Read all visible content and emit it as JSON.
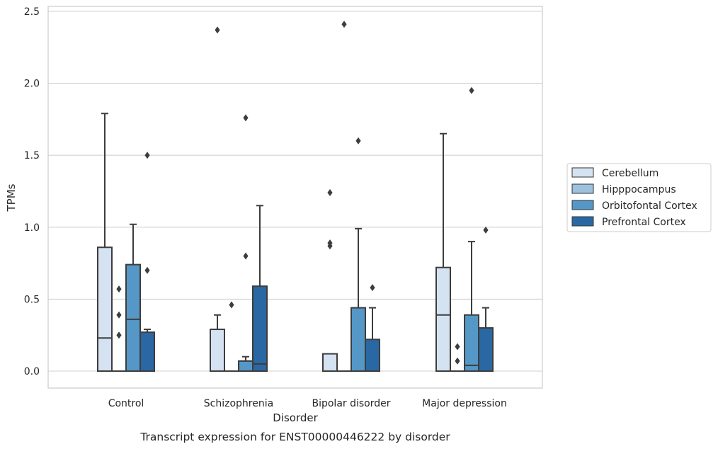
{
  "chart_data": {
    "type": "box",
    "title": "",
    "caption": "Transcript expression for ENST00000446222 by disorder",
    "xlabel": "Disorder",
    "ylabel": "TPMs",
    "ylim": [
      -0.12,
      2.55
    ],
    "yticks": [
      0.0,
      0.5,
      1.0,
      1.5,
      2.0,
      2.5
    ],
    "ytick_labels": [
      "0.0",
      "0.5",
      "1.0",
      "1.5",
      "2.0",
      "2.5"
    ],
    "grid": "horizontal",
    "legend_position": "right",
    "categories": [
      "Control",
      "Schizophrenia",
      "Bipolar disorder",
      "Major depression"
    ],
    "series": [
      {
        "name": "Cerebellum",
        "color": "#d4e2f1",
        "boxes": [
          {
            "q1": 0.0,
            "median": 0.23,
            "q3": 0.86,
            "whisker_low": 0.0,
            "whisker_high": 1.79,
            "outliers": []
          },
          {
            "q1": 0.0,
            "median": 0.0,
            "q3": 0.29,
            "whisker_low": 0.0,
            "whisker_high": 0.39,
            "outliers": [
              2.37
            ]
          },
          {
            "q1": 0.0,
            "median": 0.0,
            "q3": 0.12,
            "whisker_low": 0.0,
            "whisker_high": 0.12,
            "outliers": [
              0.87,
              0.89,
              1.24
            ]
          },
          {
            "q1": 0.0,
            "median": 0.39,
            "q3": 0.72,
            "whisker_low": 0.0,
            "whisker_high": 1.65,
            "outliers": []
          }
        ]
      },
      {
        "name": "Hipppocampus",
        "color": "#9ec2de",
        "boxes": [
          {
            "q1": 0.0,
            "median": 0.0,
            "q3": 0.0,
            "whisker_low": 0.0,
            "whisker_high": 0.0,
            "outliers": [
              0.25,
              0.39,
              0.57
            ]
          },
          {
            "q1": 0.0,
            "median": 0.0,
            "q3": 0.0,
            "whisker_low": 0.0,
            "whisker_high": 0.0,
            "outliers": [
              0.46
            ]
          },
          {
            "q1": 0.0,
            "median": 0.0,
            "q3": 0.0,
            "whisker_low": 0.0,
            "whisker_high": 0.0,
            "outliers": [
              2.41
            ]
          },
          {
            "q1": 0.0,
            "median": 0.0,
            "q3": 0.0,
            "whisker_low": 0.0,
            "whisker_high": 0.0,
            "outliers": [
              0.07,
              0.17
            ]
          }
        ]
      },
      {
        "name": "Orbitofontal Cortex",
        "color": "#5597c6",
        "boxes": [
          {
            "q1": 0.0,
            "median": 0.36,
            "q3": 0.74,
            "whisker_low": 0.0,
            "whisker_high": 1.02,
            "outliers": []
          },
          {
            "q1": 0.0,
            "median": 0.07,
            "q3": 0.07,
            "whisker_low": 0.0,
            "whisker_high": 0.1,
            "outliers": [
              0.8,
              1.76
            ]
          },
          {
            "q1": 0.0,
            "median": 0.0,
            "q3": 0.44,
            "whisker_low": 0.0,
            "whisker_high": 0.99,
            "outliers": [
              1.6
            ]
          },
          {
            "q1": 0.0,
            "median": 0.04,
            "q3": 0.39,
            "whisker_low": 0.0,
            "whisker_high": 0.9,
            "outliers": [
              1.95
            ]
          }
        ]
      },
      {
        "name": "Prefrontal Cortex",
        "color": "#2a68a4",
        "boxes": [
          {
            "q1": 0.0,
            "median": 0.0,
            "q3": 0.27,
            "whisker_low": 0.0,
            "whisker_high": 0.29,
            "outliers": [
              0.7,
              1.5
            ]
          },
          {
            "q1": 0.0,
            "median": 0.05,
            "q3": 0.59,
            "whisker_low": 0.0,
            "whisker_high": 1.15,
            "outliers": []
          },
          {
            "q1": 0.0,
            "median": 0.0,
            "q3": 0.22,
            "whisker_low": 0.0,
            "whisker_high": 0.44,
            "outliers": [
              0.58
            ]
          },
          {
            "q1": 0.0,
            "median": 0.0,
            "q3": 0.3,
            "whisker_low": 0.0,
            "whisker_high": 0.44,
            "outliers": [
              0.98
            ]
          }
        ]
      }
    ]
  }
}
